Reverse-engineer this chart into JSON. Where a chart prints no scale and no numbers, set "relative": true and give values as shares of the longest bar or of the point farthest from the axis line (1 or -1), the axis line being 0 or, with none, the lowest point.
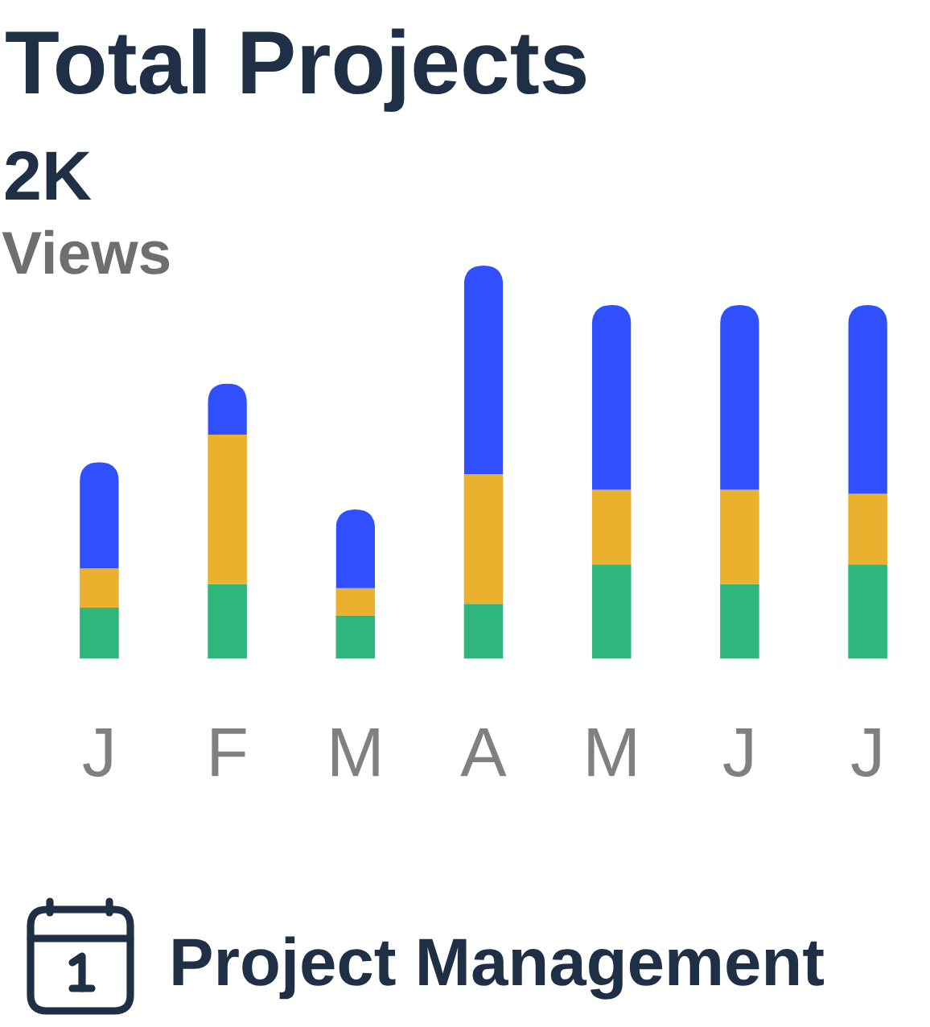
{
  "chart_data": {
    "type": "bar",
    "title": "Total Projects",
    "subtitle": "2K",
    "annotations": [
      "Views",
      "Project Management"
    ],
    "categories": [
      "J",
      "F",
      "M",
      "A",
      "M",
      "J",
      "J"
    ],
    "stacked": true,
    "relative": true,
    "series": [
      {
        "color": "#2eb67d",
        "values": [
          0.13,
          0.19,
          0.11,
          0.14,
          0.24,
          0.19,
          0.24
        ]
      },
      {
        "color": "#ebb02d",
        "values": [
          0.1,
          0.38,
          0.07,
          0.33,
          0.19,
          0.24,
          0.18
        ]
      },
      {
        "color": "#304ffe",
        "values": [
          0.27,
          0.13,
          0.2,
          0.53,
          0.47,
          0.47,
          0.48
        ]
      }
    ]
  }
}
